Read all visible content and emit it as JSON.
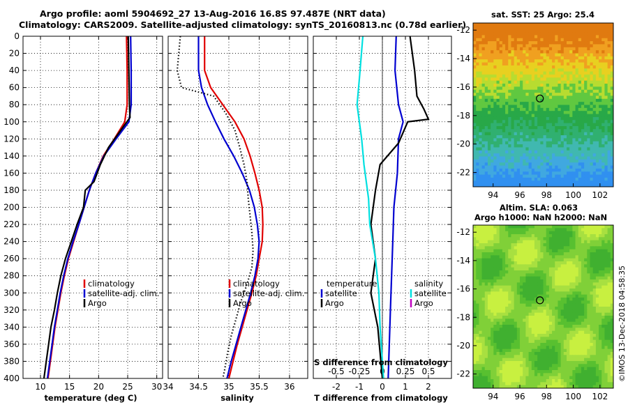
{
  "titles": {
    "line1": "Argo profile: aoml 5904692_27 13-Aug-2016 16.8S 97.487E (NRT data)",
    "line2": "Climatology: CARS2009. Satellite-adjusted climatology: synTS_20160813.nc (0.78d earlier)"
  },
  "watermark": "©IMOS 13-Dec-2018 04:58:35",
  "colors": {
    "climatology": "#e00000",
    "satellite": "#0000d0",
    "argo": "#000000",
    "sal_sat": "#00e0e0",
    "sal_argo": "#c000c0"
  },
  "depth_ticks": [
    "0",
    "20",
    "40",
    "60",
    "80",
    "100",
    "120",
    "140",
    "160",
    "180",
    "200",
    "220",
    "240",
    "260",
    "280",
    "300",
    "320",
    "340",
    "360",
    "380",
    "400"
  ],
  "chart_data": [
    {
      "type": "line",
      "name": "temperature",
      "xlabel": "temperature (deg C)",
      "ylabel": "depth",
      "xlim": [
        7,
        31
      ],
      "ylim": [
        400,
        0
      ],
      "xticks": [
        "10",
        "15",
        "20",
        "25",
        "30"
      ],
      "legend": [
        "climatology",
        "satellite-adj. clim.",
        "Argo"
      ],
      "series": [
        {
          "name": "climatology",
          "color": "#e00000",
          "points": [
            [
              24.8,
              0
            ],
            [
              24.9,
              40
            ],
            [
              24.9,
              80
            ],
            [
              24.5,
              100
            ],
            [
              22.7,
              120
            ],
            [
              20.8,
              140
            ],
            [
              19.5,
              160
            ],
            [
              18.4,
              180
            ],
            [
              17.5,
              200
            ],
            [
              16.6,
              220
            ],
            [
              15.7,
              240
            ],
            [
              14.8,
              260
            ],
            [
              14.1,
              280
            ],
            [
              13.5,
              300
            ],
            [
              13.0,
              320
            ],
            [
              12.5,
              340
            ],
            [
              12.1,
              360
            ],
            [
              11.7,
              380
            ],
            [
              11.3,
              400
            ]
          ]
        },
        {
          "name": "satellite-adj. clim.",
          "color": "#0000d0",
          "points": [
            [
              25.5,
              0
            ],
            [
              25.6,
              40
            ],
            [
              25.6,
              80
            ],
            [
              25.2,
              100
            ],
            [
              23.0,
              120
            ],
            [
              20.9,
              140
            ],
            [
              19.5,
              160
            ],
            [
              18.4,
              180
            ],
            [
              17.5,
              200
            ],
            [
              16.6,
              220
            ],
            [
              15.6,
              240
            ],
            [
              14.7,
              260
            ],
            [
              14.0,
              280
            ],
            [
              13.4,
              300
            ],
            [
              12.9,
              320
            ],
            [
              12.4,
              340
            ],
            [
              12.0,
              360
            ],
            [
              11.6,
              380
            ],
            [
              11.2,
              400
            ]
          ]
        },
        {
          "name": "Argo",
          "color": "#000000",
          "points": [
            [
              25.1,
              0
            ],
            [
              25.2,
              40
            ],
            [
              25.3,
              80
            ],
            [
              25.4,
              95
            ],
            [
              23.8,
              110
            ],
            [
              21.7,
              130
            ],
            [
              20.3,
              150
            ],
            [
              19.2,
              170
            ],
            [
              17.7,
              180
            ],
            [
              17.4,
              200
            ],
            [
              16.3,
              220
            ],
            [
              15.3,
              240
            ],
            [
              14.3,
              260
            ],
            [
              13.5,
              280
            ],
            [
              12.9,
              300
            ],
            [
              12.4,
              320
            ],
            [
              11.8,
              340
            ],
            [
              11.4,
              360
            ],
            [
              11.0,
              380
            ],
            [
              10.6,
              400
            ]
          ]
        }
      ]
    },
    {
      "type": "line",
      "name": "salinity",
      "xlabel": "salinity",
      "ylabel": "depth",
      "xlim": [
        34,
        36.3
      ],
      "ylim": [
        400,
        0
      ],
      "xticks": [
        "34",
        "34.5",
        "35",
        "35.5",
        "36"
      ],
      "legend": [
        "climatology",
        "satellite-adj. clim.",
        "Argo"
      ],
      "series": [
        {
          "name": "climatology",
          "color": "#e00000",
          "points": [
            [
              34.6,
              0
            ],
            [
              34.6,
              40
            ],
            [
              34.7,
              60
            ],
            [
              34.9,
              80
            ],
            [
              35.1,
              100
            ],
            [
              35.25,
              120
            ],
            [
              35.35,
              140
            ],
            [
              35.43,
              160
            ],
            [
              35.5,
              180
            ],
            [
              35.55,
              200
            ],
            [
              35.56,
              220
            ],
            [
              35.55,
              240
            ],
            [
              35.5,
              260
            ],
            [
              35.45,
              280
            ],
            [
              35.38,
              300
            ],
            [
              35.3,
              320
            ],
            [
              35.22,
              340
            ],
            [
              35.14,
              360
            ],
            [
              35.07,
              380
            ],
            [
              35.0,
              400
            ]
          ]
        },
        {
          "name": "satellite-adj. clim.",
          "color": "#0000d0",
          "points": [
            [
              34.5,
              0
            ],
            [
              34.5,
              40
            ],
            [
              34.55,
              60
            ],
            [
              34.65,
              80
            ],
            [
              34.78,
              100
            ],
            [
              34.92,
              120
            ],
            [
              35.08,
              140
            ],
            [
              35.22,
              160
            ],
            [
              35.34,
              180
            ],
            [
              35.42,
              200
            ],
            [
              35.47,
              220
            ],
            [
              35.5,
              240
            ],
            [
              35.48,
              260
            ],
            [
              35.43,
              280
            ],
            [
              35.36,
              300
            ],
            [
              35.28,
              320
            ],
            [
              35.2,
              340
            ],
            [
              35.12,
              360
            ],
            [
              35.04,
              380
            ],
            [
              34.97,
              400
            ]
          ]
        },
        {
          "name": "Argo",
          "color": "#000000",
          "points": [
            [
              34.2,
              0
            ],
            [
              34.15,
              40
            ],
            [
              34.22,
              60
            ],
            [
              34.75,
              70
            ],
            [
              34.95,
              90
            ],
            [
              35.1,
              110
            ],
            [
              35.18,
              130
            ],
            [
              35.25,
              150
            ],
            [
              35.3,
              170
            ],
            [
              35.32,
              190
            ],
            [
              35.35,
              210
            ],
            [
              35.38,
              230
            ],
            [
              35.4,
              250
            ],
            [
              35.38,
              270
            ],
            [
              35.3,
              290
            ],
            [
              35.2,
              310
            ],
            [
              35.12,
              330
            ],
            [
              35.04,
              350
            ],
            [
              34.98,
              370
            ],
            [
              34.93,
              390
            ],
            [
              34.9,
              400
            ]
          ]
        }
      ]
    },
    {
      "type": "line",
      "name": "difference",
      "xlabel": "T difference from climatology",
      "xlabel_top": "S difference from climatology",
      "ylabel": "depth",
      "xlim": [
        -3,
        3
      ],
      "ylim": [
        400,
        0
      ],
      "xticks": [
        "-2",
        "-1",
        "0",
        "1",
        "2"
      ],
      "xticks_top": [
        "-0.5",
        "-0.25",
        "0",
        "0.25",
        "0.5"
      ],
      "legend_temperature": {
        "title": "temperature",
        "items": [
          "satellite",
          "Argo"
        ]
      },
      "legend_salinity": {
        "title": "salinity",
        "items": [
          "satellite",
          "Argo"
        ]
      },
      "series": [
        {
          "name": "T satellite",
          "color": "#0000d0",
          "points": [
            [
              0.6,
              0
            ],
            [
              0.55,
              40
            ],
            [
              0.7,
              80
            ],
            [
              0.9,
              100
            ],
            [
              0.7,
              120
            ],
            [
              0.65,
              160
            ],
            [
              0.5,
              200
            ],
            [
              0.45,
              240
            ],
            [
              0.4,
              280
            ],
            [
              0.35,
              320
            ],
            [
              0.3,
              360
            ],
            [
              0.25,
              400
            ]
          ]
        },
        {
          "name": "T Argo",
          "color": "#000000",
          "points": [
            [
              1.2,
              0
            ],
            [
              1.4,
              40
            ],
            [
              1.5,
              70
            ],
            [
              1.8,
              85
            ],
            [
              2.0,
              97
            ],
            [
              1.1,
              100
            ],
            [
              0.7,
              125
            ],
            [
              -0.1,
              150
            ],
            [
              -0.3,
              180
            ],
            [
              -0.5,
              220
            ],
            [
              -0.3,
              260
            ],
            [
              -0.5,
              300
            ],
            [
              -0.2,
              340
            ],
            [
              -0.1,
              370
            ],
            [
              0,
              400
            ]
          ]
        },
        {
          "name": "S satellite",
          "color": "#00e0e0",
          "points": [
            [
              -0.85,
              0
            ],
            [
              -1.0,
              50
            ],
            [
              -1.1,
              80
            ],
            [
              -0.9,
              120
            ],
            [
              -0.8,
              150
            ],
            [
              -0.6,
              190
            ],
            [
              -0.55,
              220
            ],
            [
              -0.3,
              260
            ],
            [
              -0.15,
              300
            ],
            [
              -0.1,
              340
            ],
            [
              0.0,
              380
            ],
            [
              0.05,
              400
            ]
          ]
        }
      ]
    }
  ],
  "maps": [
    {
      "name": "sst-map",
      "title": "sat. SST: 25 Argo: 25.4",
      "xticks": [
        "94",
        "96",
        "98",
        "100",
        "102"
      ],
      "yticks": [
        "-12",
        "-14",
        "-16",
        "-18",
        "-20",
        "-22"
      ],
      "xlim": [
        92.5,
        103
      ],
      "ylim": [
        -23,
        -11.5
      ],
      "marker": {
        "lon": 97.5,
        "lat": -16.8
      }
    },
    {
      "name": "sla-map",
      "title_line1": "Altim. SLA: 0.063",
      "title_line2": "Argo h1000: NaN h2000: NaN",
      "xticks": [
        "94",
        "96",
        "98",
        "100",
        "102"
      ],
      "yticks": [
        "-12",
        "-14",
        "-16",
        "-18",
        "-20",
        "-22"
      ],
      "xlim": [
        92.5,
        103
      ],
      "ylim": [
        -23,
        -11.5
      ],
      "marker": {
        "lon": 97.5,
        "lat": -16.8
      }
    }
  ],
  "legend_labels": {
    "climatology": "climatology",
    "satellite_adj": "satellite-adj. clim.",
    "argo": "Argo",
    "temperature": "temperature",
    "salinity": "salinity",
    "satellite": "satellite"
  }
}
